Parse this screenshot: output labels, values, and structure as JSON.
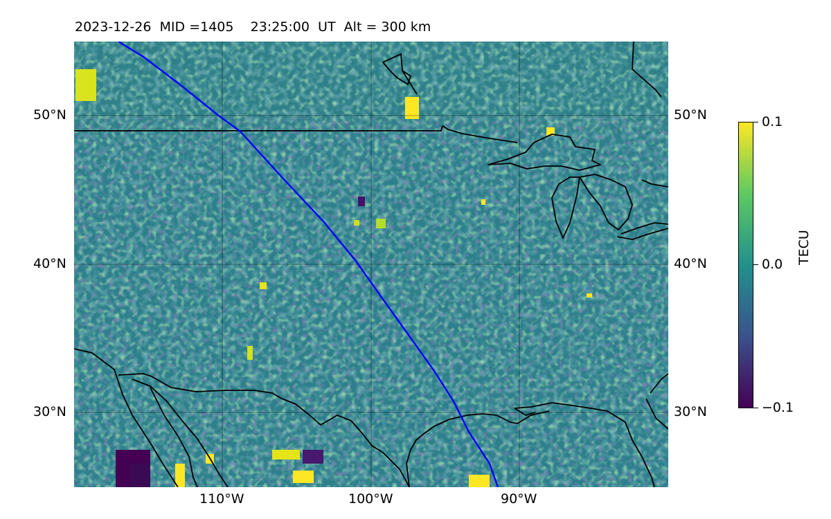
{
  "title": {
    "date": "2023-12-26",
    "mid": "MID =1405",
    "time": "23:25:00  UT",
    "alt": "Alt = 300 km"
  },
  "map": {
    "type": "ionospheric TEC perturbation map",
    "lon_range": [
      -120,
      -80
    ],
    "lat_range": [
      25,
      55
    ],
    "gridlines": true,
    "colormap": "viridis",
    "coastline_color": "#000000",
    "track_color": "#0000ff"
  },
  "lat_ticks": [
    "50°N",
    "40°N",
    "30°N"
  ],
  "lon_ticks": [
    "110°W",
    "100°W",
    "90°W"
  ],
  "colorbar": {
    "label": "TECU",
    "ticks": [
      "0.1",
      "0.0",
      "−0.1"
    ],
    "vmin": -0.1,
    "vmax": 0.1
  }
}
